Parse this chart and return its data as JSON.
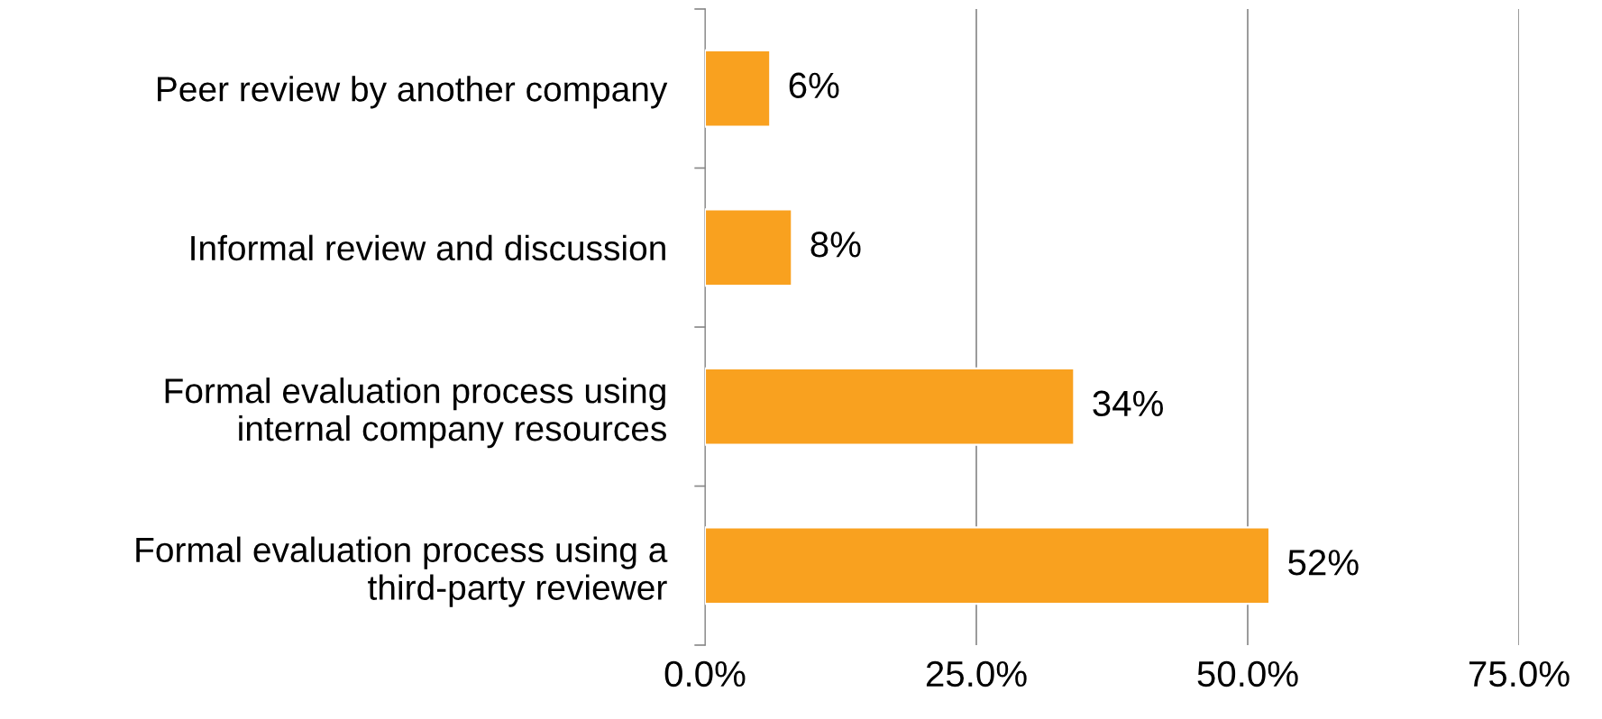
{
  "chart_data": {
    "type": "bar",
    "orientation": "horizontal",
    "categories": [
      "Peer review by another company",
      "Informal review and discussion",
      "Formal evaluation process using\ninternal company resources",
      "Formal evaluation process using a\nthird-party reviewer"
    ],
    "values": [
      6,
      8,
      34,
      52
    ],
    "value_labels": [
      "6%",
      "8%",
      "34%",
      "52%"
    ],
    "color": "#f9a11f",
    "xlim": [
      0,
      75
    ],
    "xticks": [
      {
        "value": 0,
        "label": "0.0%"
      },
      {
        "value": 25,
        "label": "25.0%"
      },
      {
        "value": 50,
        "label": "50.0%"
      },
      {
        "value": 75,
        "label": "75.0%"
      }
    ],
    "grid": "x",
    "legend": false
  }
}
